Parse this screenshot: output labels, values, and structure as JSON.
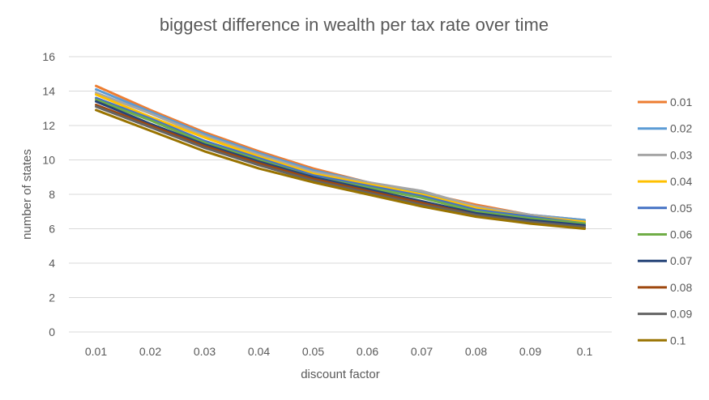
{
  "chart_data": {
    "type": "line",
    "title": "biggest difference in wealth per tax rate over time",
    "xlabel": "discount factor",
    "ylabel": "number of states",
    "categories": [
      "0.01",
      "0.02",
      "0.03",
      "0.04",
      "0.05",
      "0.06",
      "0.07",
      "0.08",
      "0.09",
      "0.1"
    ],
    "ylim": [
      0,
      16
    ],
    "yticks": [
      "0",
      "2",
      "4",
      "6",
      "8",
      "10",
      "12",
      "14",
      "16"
    ],
    "grid": true,
    "legend": "right",
    "series": [
      {
        "name": "0.01",
        "color": "#ED7D31",
        "values": [
          14.3,
          12.9,
          11.6,
          10.5,
          9.5,
          8.7,
          8.1,
          7.4,
          6.8,
          6.5
        ]
      },
      {
        "name": "0.02",
        "color": "#5B9BD5",
        "values": [
          14.1,
          12.8,
          11.5,
          10.4,
          9.4,
          8.7,
          8.1,
          7.3,
          6.8,
          6.5
        ]
      },
      {
        "name": "0.03",
        "color": "#A5A5A5",
        "values": [
          13.9,
          12.7,
          11.4,
          10.3,
          9.3,
          8.7,
          8.2,
          7.3,
          6.8,
          6.4
        ]
      },
      {
        "name": "0.04",
        "color": "#FFC000",
        "values": [
          13.8,
          12.5,
          11.3,
          10.2,
          9.2,
          8.6,
          8.0,
          7.2,
          6.7,
          6.4
        ]
      },
      {
        "name": "0.05",
        "color": "#4472C4",
        "values": [
          13.6,
          12.4,
          11.1,
          10.1,
          9.1,
          8.5,
          7.9,
          7.1,
          6.7,
          6.3
        ]
      },
      {
        "name": "0.06",
        "color": "#70AD47",
        "values": [
          13.5,
          12.3,
          11.0,
          10.0,
          9.0,
          8.4,
          7.8,
          7.0,
          6.6,
          6.3
        ]
      },
      {
        "name": "0.07",
        "color": "#264478",
        "values": [
          13.4,
          12.1,
          10.9,
          9.9,
          9.0,
          8.3,
          7.6,
          6.9,
          6.5,
          6.2
        ]
      },
      {
        "name": "0.08",
        "color": "#9E480E",
        "values": [
          13.2,
          12.0,
          10.8,
          9.8,
          8.9,
          8.2,
          7.5,
          6.8,
          6.4,
          6.1
        ]
      },
      {
        "name": "0.09",
        "color": "#636363",
        "values": [
          13.1,
          11.9,
          10.7,
          9.7,
          8.8,
          8.1,
          7.4,
          6.8,
          6.4,
          6.1
        ]
      },
      {
        "name": "0.1",
        "color": "#997300",
        "values": [
          12.9,
          11.7,
          10.5,
          9.5,
          8.7,
          8.0,
          7.3,
          6.7,
          6.3,
          6.0
        ]
      }
    ]
  }
}
